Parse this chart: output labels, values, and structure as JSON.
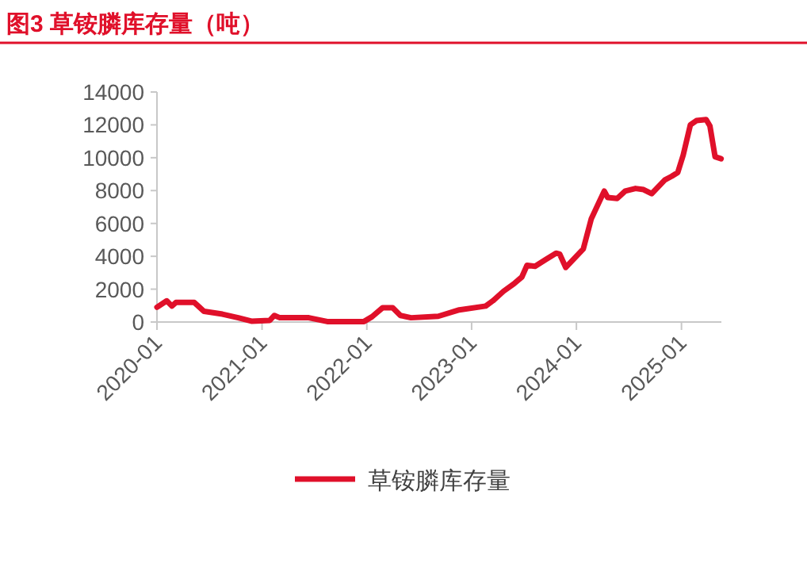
{
  "chart_data": {
    "type": "line",
    "title": "图3  草铵膦库存量（吨）",
    "x": [
      "2020-01-01",
      "2020-02-04",
      "2020-02-22",
      "2020-03-07",
      "2020-05-10",
      "2020-06-13",
      "2020-08-16",
      "2020-10-10",
      "2020-11-25",
      "2021-01-28",
      "2021-02-13",
      "2021-03-04",
      "2021-06-13",
      "2021-08-16",
      "2021-12-22",
      "2022-01-19",
      "2022-02-25",
      "2022-04-01",
      "2022-04-28",
      "2022-06-04",
      "2022-09-07",
      "2022-11-19",
      "2023-02-19",
      "2023-03-16",
      "2023-04-22",
      "2023-05-28",
      "2023-06-25",
      "2023-07-13",
      "2023-08-10",
      "2023-09-16",
      "2023-10-22",
      "2023-11-04",
      "2023-11-25",
      "2024-01-25",
      "2024-02-22",
      "2024-04-07",
      "2024-04-19",
      "2024-05-22",
      "2024-06-19",
      "2024-07-25",
      "2024-08-22",
      "2024-09-19",
      "2024-11-04",
      "2024-11-28",
      "2024-12-19",
      "2025-01-07",
      "2025-02-01",
      "2025-02-22",
      "2025-03-28",
      "2025-04-10",
      "2025-04-28",
      "2025-05-19"
    ],
    "series": [
      {
        "name": "草铵膦库存量",
        "color": "#e0102a",
        "values": [
          900,
          1290,
          970,
          1190,
          1190,
          650,
          480,
          260,
          50,
          100,
          400,
          260,
          260,
          30,
          30,
          320,
          870,
          870,
          400,
          260,
          350,
          740,
          970,
          1290,
          1870,
          2320,
          2740,
          3450,
          3390,
          3800,
          4190,
          4130,
          3320,
          4450,
          6290,
          7970,
          7580,
          7520,
          7970,
          8130,
          8060,
          7810,
          8650,
          8870,
          9100,
          10160,
          12000,
          12260,
          12320,
          11940,
          10060,
          9940
        ]
      }
    ],
    "xlim": [
      "2020-01-01",
      "2025-05-20"
    ],
    "xticks": [
      "2020-01",
      "2021-01",
      "2022-01",
      "2023-01",
      "2024-01",
      "2025-01"
    ],
    "ylim": [
      0,
      14000
    ],
    "yticks": [
      0,
      2000,
      4000,
      6000,
      8000,
      10000,
      12000,
      14000
    ],
    "grid": false,
    "legend": "bottom",
    "marker": "none",
    "line_style": "solid"
  }
}
